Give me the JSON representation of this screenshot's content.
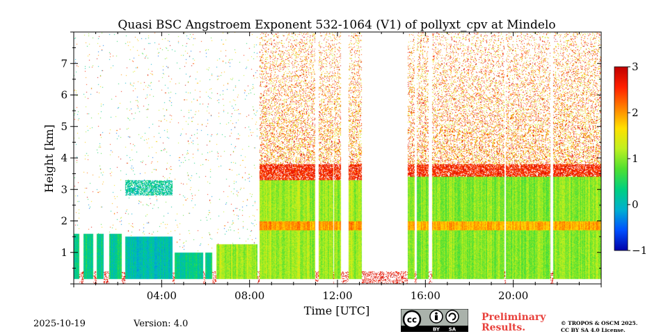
{
  "chart_data": {
    "type": "heatmap",
    "title": "Quasi BSC Angstroem Exponent 532-1064 (V1) of pollyxt_cpv at Mindelo",
    "xlabel": "Time [UTC]",
    "ylabel": "Height [km]",
    "xlim_hours": [
      0,
      24
    ],
    "ylim_km": [
      0,
      8
    ],
    "x_ticks": [
      {
        "hour": 4,
        "label": "04:00"
      },
      {
        "hour": 8,
        "label": "08:00"
      },
      {
        "hour": 12,
        "label": "12:00"
      },
      {
        "hour": 16,
        "label": "16:00"
      },
      {
        "hour": 20,
        "label": "20:00"
      }
    ],
    "y_ticks": [
      {
        "km": 1,
        "label": "1"
      },
      {
        "km": 2,
        "label": "2"
      },
      {
        "km": 3,
        "label": "3"
      },
      {
        "km": 4,
        "label": "4"
      },
      {
        "km": 5,
        "label": "5"
      },
      {
        "km": 6,
        "label": "6"
      },
      {
        "km": 7,
        "label": "7"
      }
    ],
    "colorbar": {
      "vmin": -1,
      "vmax": 3,
      "ticks": [
        {
          "value": -1,
          "label": "−1"
        },
        {
          "value": 0,
          "label": "0"
        },
        {
          "value": 1,
          "label": "1"
        },
        {
          "value": 2,
          "label": "2"
        },
        {
          "value": 3,
          "label": "3"
        }
      ],
      "colormap": [
        "#0000a8",
        "#0050ff",
        "#00b0d0",
        "#00d080",
        "#50e030",
        "#c0f020",
        "#ffe000",
        "#ff8000",
        "#ff2000",
        "#c00000"
      ]
    },
    "features": {
      "low_layer_top_km_by_period": [
        {
          "start": 0.0,
          "end": 2.2,
          "top": 1.6,
          "mean_value": 0.3
        },
        {
          "start": 2.2,
          "end": 4.5,
          "top": 1.5,
          "mean_value": 0.1
        },
        {
          "start": 4.5,
          "end": 6.5,
          "top": 1.0,
          "mean_value": 0.3
        },
        {
          "start": 6.5,
          "end": 8.4,
          "top": 1.25,
          "mean_value": 1.1
        },
        {
          "start": 8.4,
          "end": 15.2,
          "top": 3.3,
          "mean_value": 1.1
        },
        {
          "start": 15.2,
          "end": 24.0,
          "top": 3.4,
          "mean_value": 1.0
        }
      ],
      "aerosol_layer_top_km": 3.8,
      "enhanced_band_km": [
        1.7,
        2.0
      ],
      "noise_region_km": [
        3.8,
        8.0
      ]
    }
  },
  "footer": {
    "date": "2025-10-19",
    "version": "Version: 4.0",
    "preliminary": "Preliminary",
    "results": "Results.",
    "copyright_line1": "© TROPOS & OSCM 2025.",
    "copyright_line2": "CC BY SA 4.0 License."
  },
  "license_badge": {
    "cc": "cc",
    "by": "BY",
    "sa": "SA"
  }
}
